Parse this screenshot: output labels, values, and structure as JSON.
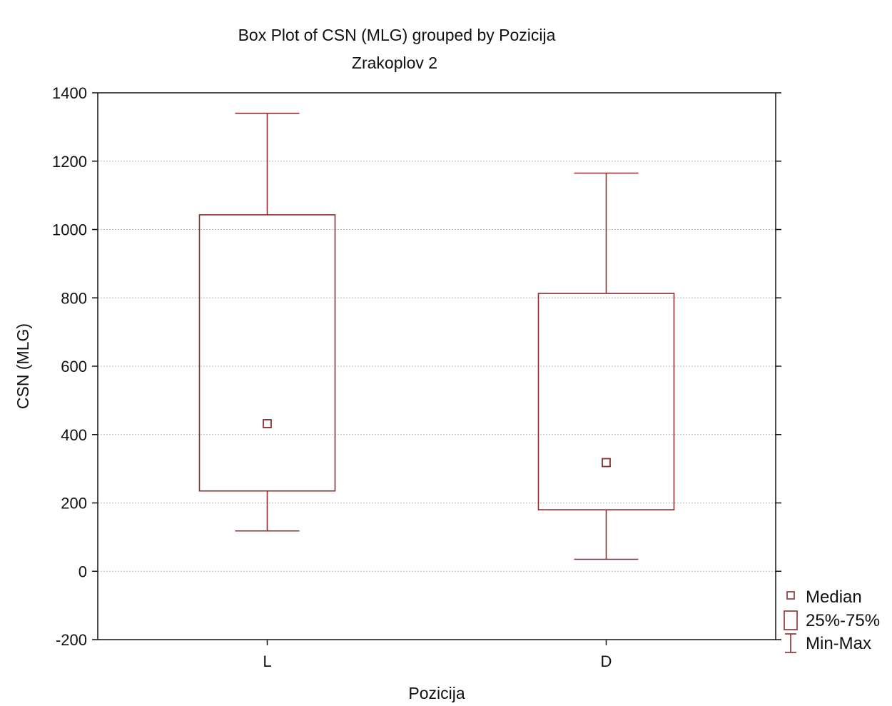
{
  "chart_data": {
    "type": "box",
    "title": "Box Plot of CSN (MLG) grouped by  Pozicija",
    "subtitle": "Zrakoplov 2",
    "xlabel": "Pozicija",
    "ylabel": "CSN (MLG)",
    "ylim": [
      -200,
      1400
    ],
    "yticks": [
      -200,
      0,
      200,
      400,
      600,
      800,
      1000,
      1200,
      1400
    ],
    "categories": [
      "L",
      "D"
    ],
    "boxes": [
      {
        "category": "L",
        "min": 118,
        "q1": 235,
        "median": 432,
        "q3": 1043,
        "max": 1340
      },
      {
        "category": "D",
        "min": 35,
        "q1": 180,
        "median": 318,
        "q3": 813,
        "max": 1165
      }
    ],
    "grid": true,
    "legend_position": "right-bottom",
    "legend": [
      {
        "symbol": "median",
        "label": "Median"
      },
      {
        "symbol": "box",
        "label": "25%-75%"
      },
      {
        "symbol": "whisker",
        "label": "Min-Max"
      }
    ],
    "color": "#8b2d2d"
  }
}
